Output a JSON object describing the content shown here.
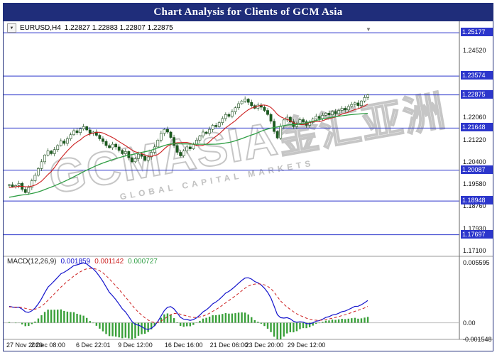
{
  "title_bar": {
    "title": "Chart Analysis for Clients of GCM Asia"
  },
  "chart": {
    "symbol_line": {
      "dropdown_icon": "▼",
      "symbol": "EURUSD,H4",
      "ohlc": "1.22827 1.22883 1.22807 1.22875"
    },
    "macd_header": {
      "name": "MACD(12,26,9)",
      "macd_value": "0.001859",
      "signal_value": "0.001142",
      "histogram_value": "0.000727"
    },
    "watermark": {
      "main": "GCMASIA",
      "cjk": "金汇亚洲",
      "sub": "GLOBAL CAPITAL MARKETS"
    },
    "shift_marker": "▼"
  },
  "chart_data": [
    {
      "type": "candlestick",
      "symbol": "EURUSD",
      "timeframe": "H4",
      "ohlc": {
        "open": 1.22827,
        "high": 1.22883,
        "low": 1.22807,
        "close": 1.22875
      },
      "ylim": [
        1.169,
        1.256
      ],
      "closes": [
        1.1955,
        1.1948,
        1.1952,
        1.196,
        1.1938,
        1.1926,
        1.1945,
        1.197,
        1.199,
        1.2015,
        1.204,
        1.2065,
        1.208,
        1.207,
        1.2085,
        1.21,
        1.2117,
        1.2108,
        1.2125,
        1.214,
        1.2155,
        1.2148,
        1.2162,
        1.217,
        1.2158,
        1.2145,
        1.215,
        1.2138,
        1.2125,
        1.2115,
        1.21,
        1.2092,
        1.2105,
        1.2095,
        1.2082,
        1.207,
        1.2078,
        1.2055,
        1.204,
        1.2052,
        1.2068,
        1.206,
        1.2045,
        1.2058,
        1.2075,
        1.2095,
        1.212,
        1.2145,
        1.216,
        1.215,
        1.213,
        1.21,
        1.2075,
        1.2062,
        1.208,
        1.2095,
        1.2088,
        1.2105,
        1.212,
        1.2135,
        1.215,
        1.2145,
        1.216,
        1.2175,
        1.217,
        1.2185,
        1.22,
        1.2215,
        1.2208,
        1.2225,
        1.224,
        1.2255,
        1.2265,
        1.2272,
        1.226,
        1.2248,
        1.2238,
        1.225,
        1.2242,
        1.223,
        1.2215,
        1.219,
        1.2152,
        1.2128,
        1.2172,
        1.2195,
        1.2205,
        1.2188,
        1.217,
        1.2182,
        1.2196,
        1.2188,
        1.2175,
        1.2185,
        1.2198,
        1.2208,
        1.22,
        1.2212,
        1.222,
        1.2214,
        1.2226,
        1.2218,
        1.223,
        1.2238,
        1.2232,
        1.2245,
        1.2252,
        1.2258,
        1.2248,
        1.2265,
        1.2278,
        1.22875
      ],
      "price_levels": [
        "1.25177",
        "1.23574",
        "1.22875",
        "1.21648",
        "1.20087",
        "1.18948",
        "1.17697"
      ],
      "axis_ticks": [
        "1.24520",
        "1.22060",
        "1.21220",
        "1.20400",
        "1.19580",
        "1.18760",
        "1.17930",
        "1.17100"
      ],
      "x_labels": [
        "27 Nov 2020",
        "2 Dec 08:00",
        "6 Dec 22:01",
        "9 Dec 12:00",
        "16 Dec 16:00",
        "21 Dec 06:00",
        "23 Dec 20:00",
        "29 Dec 12:00"
      ],
      "x_label_indices": [
        0,
        12,
        26,
        39,
        54,
        68,
        79,
        92
      ],
      "level_color": "#2c36cc",
      "candle_colors": {
        "up": "#ffffff",
        "down": "#1b5e20",
        "wick": "#1b4d1b"
      },
      "ma_fast_period": 10,
      "ma_slow_period": 40,
      "ma_colors": {
        "fast": "#cc2020",
        "slow": "#2f9e44"
      }
    },
    {
      "type": "line",
      "name": "MACD",
      "params": [
        12,
        26,
        9
      ],
      "values": [
        0.001859,
        0.001142,
        0.000727
      ],
      "ylim": [
        -0.001548,
        0.005595
      ],
      "axis_ticks": [
        "0.005595",
        "0.00",
        "-0.001548"
      ],
      "colors": {
        "macd": "#1414cc",
        "signal": "#cc1f1f",
        "histogram": "#3aa03a"
      },
      "legend": "MACD(12,26,9)"
    }
  ]
}
